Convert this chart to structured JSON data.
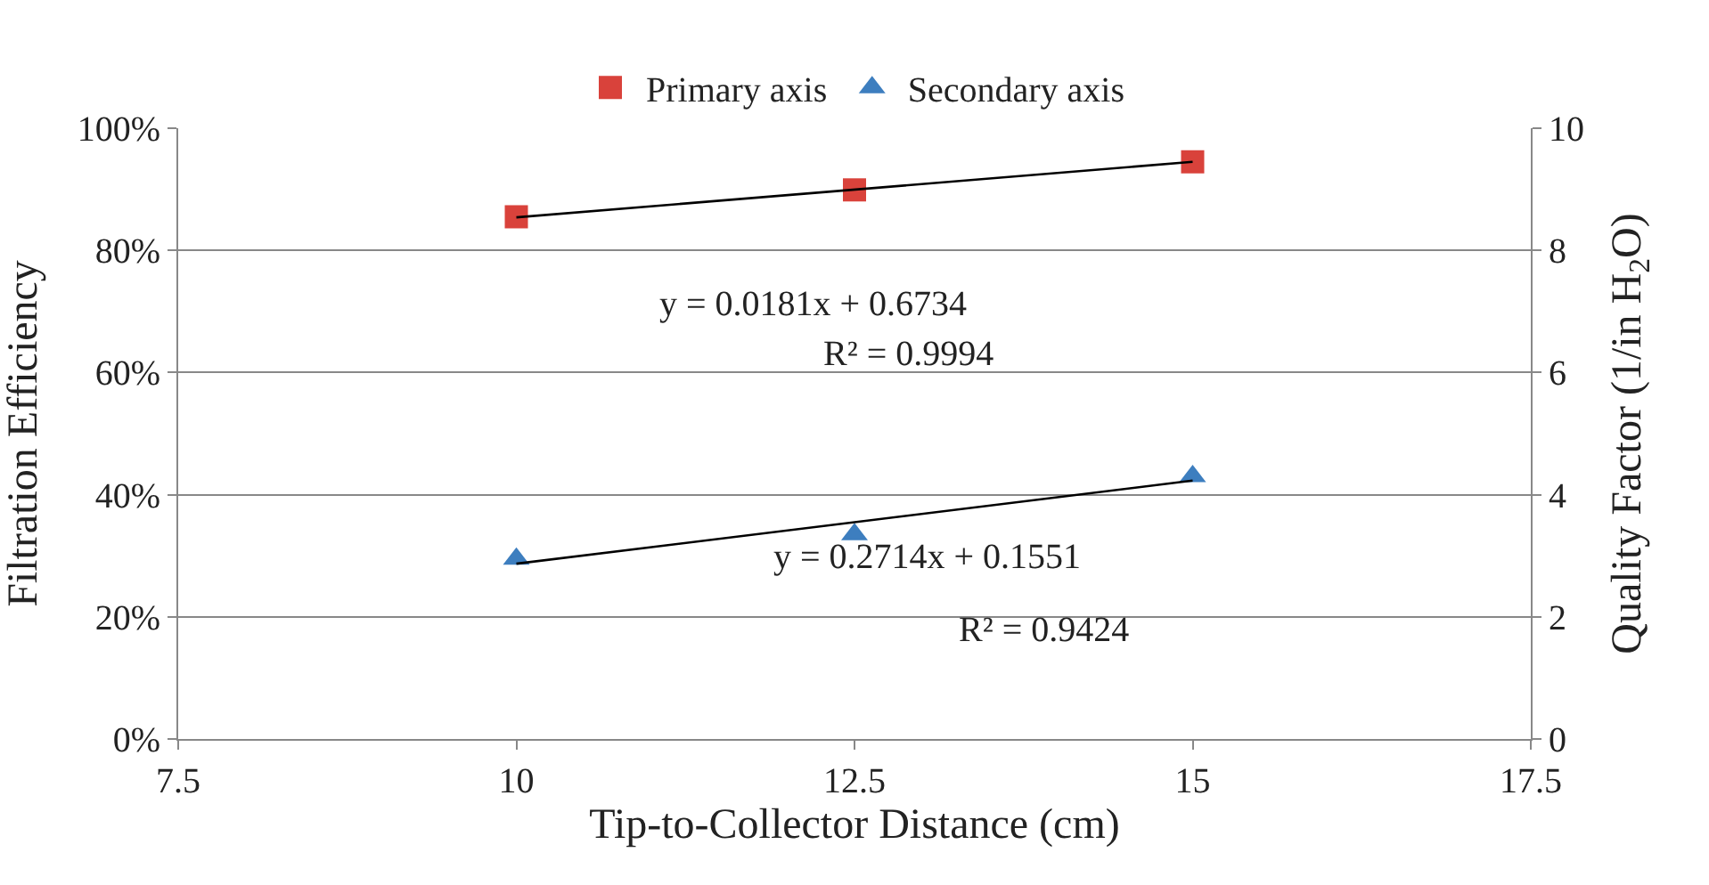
{
  "chart_data": {
    "type": "scatter",
    "xlabel": "Tip-to-Collector Distance (cm)",
    "ylabel": "Filtration Efficiency",
    "y2label": "Quality Factor (1/in H$_{2}$O)",
    "xlim": [
      7.5,
      17.5
    ],
    "xticks": [
      7.5,
      10,
      12.5,
      15,
      17.5
    ],
    "ylim": [
      0,
      1
    ],
    "yticks": [
      {
        "value": 0,
        "label": "0%"
      },
      {
        "value": 0.2,
        "label": "20%"
      },
      {
        "value": 0.4,
        "label": "40%"
      },
      {
        "value": 0.6,
        "label": "60%"
      },
      {
        "value": 0.8,
        "label": "80%"
      },
      {
        "value": 1,
        "label": "100%"
      }
    ],
    "y2lim": [
      0,
      10
    ],
    "y2ticks": [
      0,
      2,
      4,
      6,
      8,
      10
    ],
    "grid": "y",
    "legend": "top",
    "series": [
      {
        "name": "Primary axis",
        "marker": "square",
        "color": "#d9423b",
        "x": [
          10,
          12.5,
          15
        ],
        "values": [
          0.855,
          0.899,
          0.945
        ]
      },
      {
        "name": "Secondary axis",
        "marker": "triangle",
        "color": "#3d7ebf",
        "axis": "y2",
        "x": [
          10,
          12.5,
          15
        ],
        "values": [
          2.95,
          3.35,
          4.3
        ]
      },
      {
        "type": "line",
        "color": "#000000",
        "x": [
          10,
          15
        ],
        "values": [
          0.854,
          0.945
        ]
      },
      {
        "type": "line",
        "color": "#000000",
        "axis": "y2",
        "x": [
          10,
          15
        ],
        "values": [
          2.87,
          4.23
        ]
      }
    ],
    "annotations": [
      "y = 0.0181x + 0.6734",
      "R² = 0.9994",
      "y = 0.2714x + 0.1551",
      "R² = 0.9424"
    ]
  }
}
